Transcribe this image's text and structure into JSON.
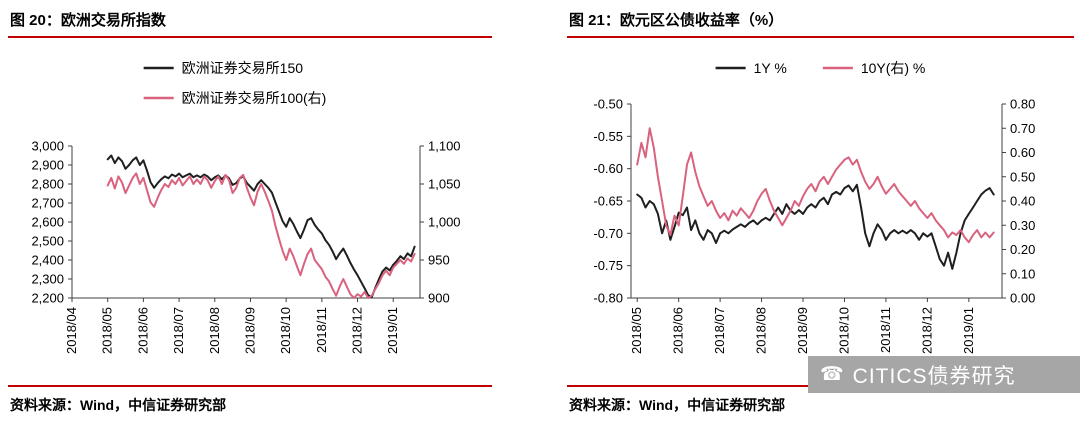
{
  "panels": [
    {
      "title": "图 20：欧洲交易所指数",
      "source": "资料来源：Wind，中信证券研究部"
    },
    {
      "title": "图 21：欧元区公债收益率（%）",
      "source": "资料来源：Wind，中信证券研究部"
    }
  ],
  "watermark": {
    "text": "CITICS债券研究",
    "icon": "phone-icon",
    "glyph": "☎",
    "bg": "#a6a6a6",
    "fg": "#ffffff"
  },
  "colors": {
    "accent_red": "#c00000",
    "axis": "#404040",
    "series_black": "#1f1f1f",
    "series_pink": "#d9627e"
  },
  "chart_data": [
    {
      "type": "line",
      "title": "图 20：欧洲交易所指数",
      "legend_position": "stacked",
      "grid": false,
      "x_axis": {
        "min": 0,
        "max": 9.75,
        "tick_values": [
          0,
          1,
          2,
          3,
          4,
          5,
          6,
          7,
          8,
          9
        ],
        "tick_labels": [
          "2018/04",
          "2018/05",
          "2018/06",
          "2018/07",
          "2018/08",
          "2018/09",
          "2018/10",
          "2018/11",
          "2018/12",
          "2019/01"
        ]
      },
      "left_axis": {
        "min": 2200,
        "max": 3000,
        "tick_values": [
          3000,
          2900,
          2800,
          2700,
          2600,
          2500,
          2400,
          2300,
          2200
        ],
        "tick_labels": [
          "3,000",
          "2,900",
          "2,800",
          "2,700",
          "2,600",
          "2,500",
          "2,400",
          "2,300",
          "2,200"
        ]
      },
      "right_axis": {
        "min": 900,
        "max": 1100,
        "tick_values": [
          1100,
          1050,
          1000,
          950,
          900
        ],
        "tick_labels": [
          "1,100",
          "1,050",
          "1,000",
          "950",
          "900"
        ]
      },
      "series": [
        {
          "name": "欧洲证券交易所150",
          "axis": "left",
          "color": "#1f1f1f",
          "x0": 1.0,
          "dx": 0.1,
          "values": [
            2930,
            2950,
            2910,
            2940,
            2920,
            2880,
            2900,
            2925,
            2940,
            2900,
            2925,
            2870,
            2810,
            2780,
            2805,
            2825,
            2840,
            2830,
            2850,
            2840,
            2855,
            2835,
            2845,
            2855,
            2835,
            2845,
            2835,
            2850,
            2840,
            2820,
            2835,
            2845,
            2825,
            2845,
            2830,
            2795,
            2805,
            2830,
            2840,
            2805,
            2785,
            2765,
            2800,
            2820,
            2800,
            2780,
            2755,
            2705,
            2655,
            2605,
            2575,
            2620,
            2590,
            2550,
            2515,
            2560,
            2610,
            2620,
            2585,
            2560,
            2540,
            2505,
            2480,
            2445,
            2405,
            2435,
            2460,
            2425,
            2385,
            2350,
            2320,
            2285,
            2250,
            2215,
            2205,
            2255,
            2300,
            2340,
            2360,
            2345,
            2375,
            2395,
            2420,
            2405,
            2435,
            2420,
            2470
          ]
        },
        {
          "name": "欧洲证券交易所100(右)",
          "axis": "right",
          "color": "#d9627e",
          "x0": 1.0,
          "dx": 0.1,
          "values": [
            1048,
            1058,
            1044,
            1060,
            1052,
            1038,
            1048,
            1058,
            1064,
            1050,
            1058,
            1042,
            1026,
            1020,
            1032,
            1042,
            1050,
            1046,
            1055,
            1050,
            1058,
            1048,
            1054,
            1060,
            1050,
            1056,
            1050,
            1060,
            1055,
            1045,
            1054,
            1060,
            1050,
            1062,
            1055,
            1038,
            1045,
            1058,
            1062,
            1045,
            1032,
            1022,
            1040,
            1050,
            1040,
            1028,
            1015,
            995,
            978,
            962,
            950,
            965,
            955,
            942,
            930,
            945,
            958,
            965,
            950,
            944,
            938,
            928,
            922,
            912,
            903,
            915,
            925,
            915,
            905,
            900,
            905,
            902,
            908,
            900,
            903,
            912,
            920,
            930,
            936,
            930,
            940,
            945,
            950,
            945,
            952,
            948,
            958
          ]
        }
      ]
    },
    {
      "type": "line",
      "title": "图 21：欧元区公债收益率（%）",
      "legend_position": "row",
      "grid": false,
      "x_axis": {
        "min": -0.15,
        "max": 8.8,
        "tick_values": [
          0,
          1,
          2,
          3,
          4,
          5,
          6,
          7,
          8
        ],
        "tick_labels": [
          "2018/05",
          "2018/06",
          "2018/07",
          "2018/08",
          "2018/09",
          "2018/10",
          "2018/11",
          "2018/12",
          "2019/01"
        ]
      },
      "left_axis": {
        "min": -0.8,
        "max": -0.5,
        "tick_values": [
          -0.5,
          -0.55,
          -0.6,
          -0.65,
          -0.7,
          -0.75,
          -0.8
        ],
        "tick_labels": [
          "-0.50",
          "-0.55",
          "-0.60",
          "-0.65",
          "-0.70",
          "-0.75",
          "-0.80"
        ]
      },
      "right_axis": {
        "min": 0.0,
        "max": 0.8,
        "tick_values": [
          0.8,
          0.7,
          0.6,
          0.5,
          0.4,
          0.3,
          0.2,
          0.1,
          0.0
        ],
        "tick_labels": [
          "0.80",
          "0.70",
          "0.60",
          "0.50",
          "0.40",
          "0.30",
          "0.20",
          "0.10",
          "0.00"
        ]
      },
      "series": [
        {
          "name": "1Y %",
          "axis": "left",
          "color": "#1f1f1f",
          "x0": 0.0,
          "dx": 0.1,
          "values": [
            -0.64,
            -0.645,
            -0.66,
            -0.65,
            -0.655,
            -0.67,
            -0.7,
            -0.68,
            -0.71,
            -0.69,
            -0.668,
            -0.672,
            -0.66,
            -0.695,
            -0.68,
            -0.7,
            -0.71,
            -0.695,
            -0.7,
            -0.715,
            -0.7,
            -0.696,
            -0.7,
            -0.694,
            -0.69,
            -0.686,
            -0.69,
            -0.684,
            -0.68,
            -0.686,
            -0.68,
            -0.676,
            -0.68,
            -0.67,
            -0.66,
            -0.67,
            -0.655,
            -0.665,
            -0.67,
            -0.664,
            -0.67,
            -0.66,
            -0.655,
            -0.66,
            -0.65,
            -0.645,
            -0.655,
            -0.64,
            -0.636,
            -0.64,
            -0.63,
            -0.626,
            -0.635,
            -0.625,
            -0.66,
            -0.7,
            -0.72,
            -0.7,
            -0.686,
            -0.695,
            -0.71,
            -0.7,
            -0.695,
            -0.7,
            -0.696,
            -0.7,
            -0.695,
            -0.7,
            -0.71,
            -0.7,
            -0.705,
            -0.7,
            -0.72,
            -0.74,
            -0.75,
            -0.73,
            -0.755,
            -0.73,
            -0.7,
            -0.68,
            -0.67,
            -0.66,
            -0.65,
            -0.64,
            -0.634,
            -0.63,
            -0.64
          ]
        },
        {
          "name": "10Y(右) %",
          "axis": "right",
          "color": "#d9627e",
          "x0": 0.0,
          "dx": 0.1,
          "values": [
            0.55,
            0.64,
            0.58,
            0.7,
            0.62,
            0.5,
            0.4,
            0.3,
            0.26,
            0.34,
            0.3,
            0.42,
            0.55,
            0.6,
            0.52,
            0.46,
            0.42,
            0.38,
            0.4,
            0.36,
            0.33,
            0.35,
            0.32,
            0.36,
            0.34,
            0.37,
            0.35,
            0.33,
            0.36,
            0.4,
            0.43,
            0.45,
            0.4,
            0.36,
            0.33,
            0.3,
            0.33,
            0.36,
            0.4,
            0.38,
            0.42,
            0.45,
            0.47,
            0.44,
            0.48,
            0.5,
            0.47,
            0.5,
            0.53,
            0.55,
            0.57,
            0.58,
            0.55,
            0.57,
            0.52,
            0.48,
            0.45,
            0.47,
            0.5,
            0.46,
            0.43,
            0.45,
            0.47,
            0.44,
            0.42,
            0.4,
            0.38,
            0.4,
            0.37,
            0.35,
            0.33,
            0.35,
            0.32,
            0.3,
            0.28,
            0.25,
            0.27,
            0.26,
            0.28,
            0.25,
            0.23,
            0.26,
            0.28,
            0.25,
            0.27,
            0.25,
            0.27
          ]
        }
      ]
    }
  ]
}
